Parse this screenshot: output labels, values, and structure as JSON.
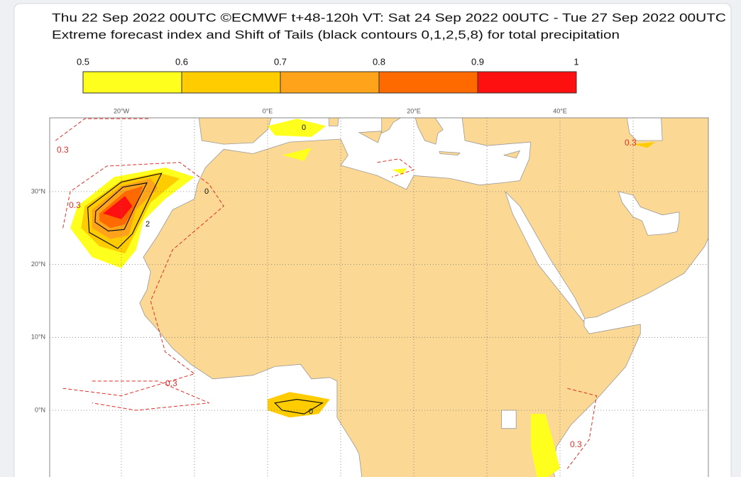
{
  "header": {
    "title_line1": "Thu 22 Sep 2022 00UTC ©ECMWF t+48-120h  VT: Sat 24 Sep 2022 00UTC - Tue 27 Sep 2022 00UTC",
    "title_line2": "Extreme forecast index and Shift of Tails (black contours 0,1,2,5,8) for total precipitation"
  },
  "colorbar": {
    "ticks": [
      0.5,
      0.6,
      0.7,
      0.8,
      0.9,
      1
    ],
    "colors": [
      "#ffff1e",
      "#ffcc00",
      "#ffa31a",
      "#ff6a00",
      "#ff1010"
    ]
  },
  "map": {
    "lon_labels": [
      "20°W",
      "0°E",
      "20°E",
      "40°E"
    ],
    "lat_labels": [
      "30°N",
      "20°N",
      "10°N",
      "0°N"
    ],
    "contour_labels": [
      "0.3",
      "0.3",
      "0.3",
      "0.3",
      "0.3",
      "0",
      "0",
      "0",
      "2"
    ]
  }
}
